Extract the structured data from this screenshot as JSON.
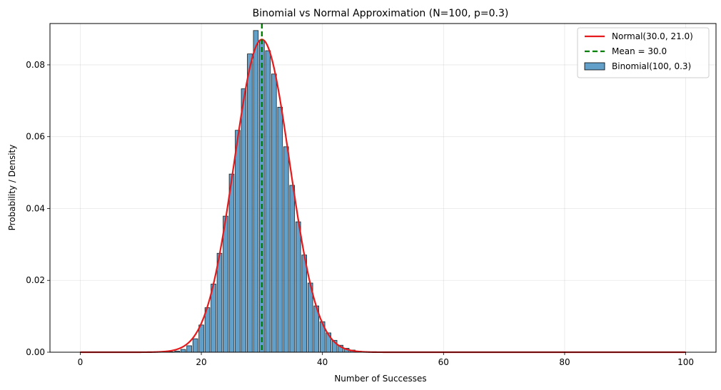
{
  "chart_data": {
    "type": "bar",
    "title": "Binomial vs Normal Approximation (N=100, p=0.3)",
    "xlabel": "Number of Successes",
    "ylabel": "Probability / Density",
    "xlim": [
      -5,
      105
    ],
    "ylim": [
      0,
      0.0915
    ],
    "xticks": [
      0,
      20,
      40,
      60,
      80,
      100
    ],
    "yticks": [
      0.0,
      0.02,
      0.04,
      0.06,
      0.08
    ],
    "ytick_labels": [
      "0.00",
      "0.02",
      "0.04",
      "0.06",
      "0.08"
    ],
    "grid": true,
    "legend_position": "top-right",
    "binomial": {
      "name": "Binomial(100, 0.3)",
      "color": "#1f77b4",
      "x": [
        0,
        1,
        2,
        3,
        4,
        5,
        6,
        7,
        8,
        9,
        10,
        11,
        12,
        13,
        14,
        15,
        16,
        17,
        18,
        19,
        20,
        21,
        22,
        23,
        24,
        25,
        26,
        27,
        28,
        29,
        30,
        31,
        32,
        33,
        34,
        35,
        36,
        37,
        38,
        39,
        40,
        41,
        42,
        43,
        44,
        45,
        46,
        47,
        48,
        49,
        50,
        51,
        52,
        53,
        54,
        55,
        56,
        57,
        58,
        59,
        60,
        61,
        62,
        63,
        64,
        65,
        66,
        67,
        68,
        69,
        70,
        71,
        72,
        73,
        74,
        75,
        76,
        77,
        78,
        79,
        80,
        81,
        82,
        83,
        84,
        85,
        86,
        87,
        88,
        89,
        90,
        91,
        92,
        93,
        94,
        95,
        96,
        97,
        98,
        99,
        100
      ],
      "values": [
        0,
        0,
        0,
        0,
        0,
        0,
        0,
        0,
        0,
        0,
        0,
        0,
        0,
        1e-05,
        4e-05,
        0.00012,
        0.00032,
        0.00079,
        0.0018,
        0.00375,
        0.00758,
        0.0124,
        0.01899,
        0.02754,
        0.03789,
        0.0496,
        0.06178,
        0.07334,
        0.08304,
        0.08955,
        0.08678,
        0.08394,
        0.07745,
        0.06821,
        0.0572,
        0.04646,
        0.0363,
        0.02706,
        0.01926,
        0.01289,
        0.00849,
        0.00538,
        0.00331,
        0.00194,
        0.0011,
        0.0006,
        0.00031,
        0.00015,
        7e-05,
        3e-05,
        1e-05,
        0,
        0,
        0,
        0,
        0,
        0,
        0,
        0,
        0,
        0,
        0,
        0,
        0,
        0,
        0,
        0,
        0,
        0,
        0,
        0,
        0,
        0,
        0,
        0,
        0,
        0,
        0,
        0,
        0,
        0,
        0,
        0,
        0,
        0,
        0,
        0,
        0,
        0,
        0,
        0,
        0,
        0,
        0,
        0,
        0,
        0,
        0,
        0,
        0,
        0
      ]
    },
    "normal": {
      "name": "Normal(30.0, 21.0)",
      "mean": 30.0,
      "variance": 21.0,
      "color": "#e41a1c"
    },
    "mean_line": {
      "name": "Mean = 30.0",
      "x": 30.0,
      "color": "#008000"
    }
  }
}
